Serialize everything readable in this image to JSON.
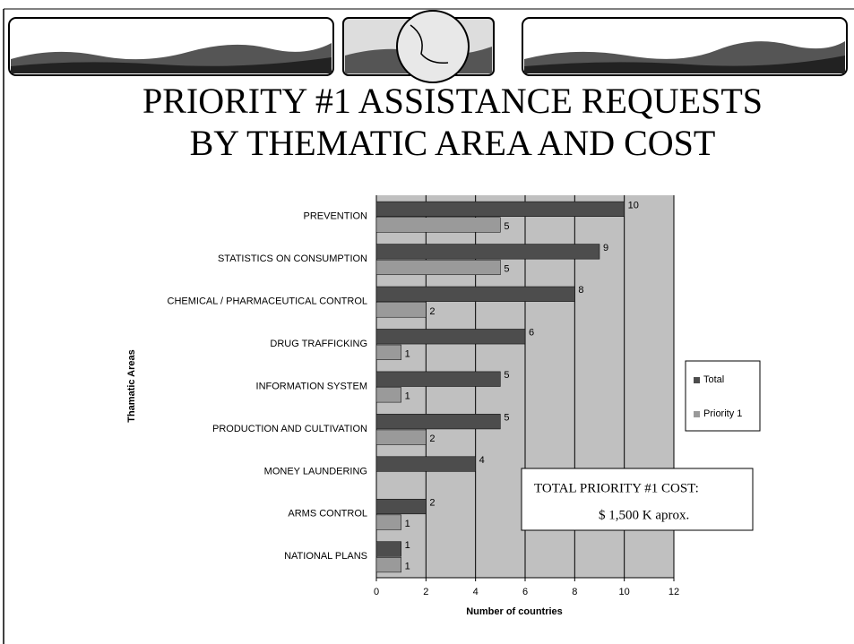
{
  "chart_data": {
    "type": "bar",
    "orientation": "horizontal",
    "title": [
      "PRIORITY #1 ASSISTANCE REQUESTS",
      "BY THEMATIC AREA AND COST"
    ],
    "categories": [
      "PREVENTION",
      "STATISTICS ON CONSUMPTION",
      "CHEMICAL / PHARMACEUTICAL CONTROL",
      "DRUG TRAFFICKING",
      "INFORMATION SYSTEM",
      "PRODUCTION AND CULTIVATION",
      "MONEY LAUNDERING",
      "ARMS CONTROL",
      "NATIONAL PLANS"
    ],
    "series": [
      {
        "name": "Total",
        "color": "#4d4d4d",
        "values": [
          10,
          9,
          8,
          6,
          5,
          5,
          4,
          2,
          1
        ]
      },
      {
        "name": "Priority 1",
        "color": "#9a9a9a",
        "values": [
          5,
          5,
          2,
          1,
          1,
          2,
          null,
          1,
          1
        ]
      }
    ],
    "xlim": [
      0,
      12
    ],
    "xticks": [
      0,
      2,
      4,
      6,
      8,
      10,
      12
    ],
    "x_label": "Number of countries",
    "y_label": "Thamatic Areas",
    "grid": true,
    "legend": "right",
    "annotations": [
      "TOTAL PRIORITY #1 COST:",
      "$ 1,500 K aprox."
    ]
  }
}
